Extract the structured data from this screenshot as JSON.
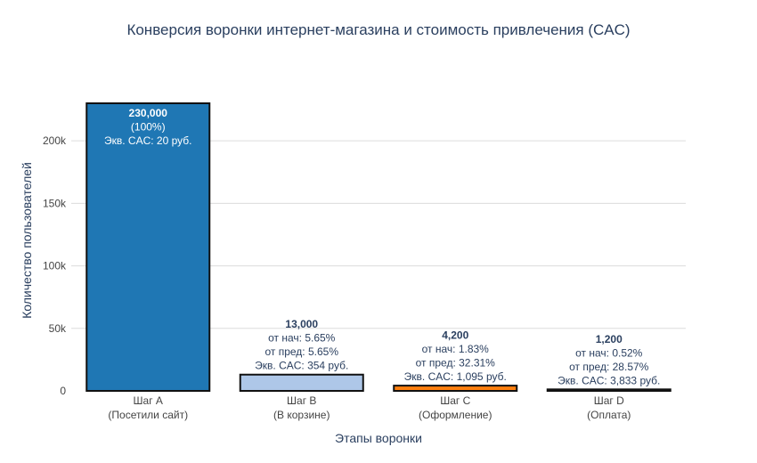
{
  "chart_data": {
    "type": "bar",
    "title": "Конверсия воронки интернет-магазина и стоимость привлечения (CAC)",
    "xlabel": "Этапы воронки",
    "ylabel": "Количество пользователей",
    "ylim": [
      0,
      230000
    ],
    "yticks": [
      0,
      50000,
      100000,
      150000,
      200000
    ],
    "ytick_labels": [
      "0",
      "50k",
      "100k",
      "150k",
      "200k"
    ],
    "grid": true,
    "categories": [
      [
        "Шаг A",
        "(Посетили сайт)"
      ],
      [
        "Шаг B",
        "(В корзине)"
      ],
      [
        "Шаг C",
        "(Оформление)"
      ],
      [
        "Шаг D",
        "(Оплата)"
      ]
    ],
    "values": [
      230000,
      13000,
      4200,
      1200
    ],
    "colors": [
      "#1f77b4",
      "#aec7e8",
      "#ff7f0e",
      "#111111"
    ],
    "data_labels": [
      [
        "230,000",
        "(100%)",
        "Экв. CAC: 20 руб."
      ],
      [
        "13,000",
        "от нач: 5.65%",
        "от пред: 5.65%",
        "Экв. CAC: 354 руб."
      ],
      [
        "4,200",
        "от нач: 1.83%",
        "от пред: 32.31%",
        "Экв. CAC: 1,095 руб."
      ],
      [
        "1,200",
        "от нач: 0.52%",
        "от пред: 28.57%",
        "Экв. CAC: 3,833 руб."
      ]
    ]
  }
}
